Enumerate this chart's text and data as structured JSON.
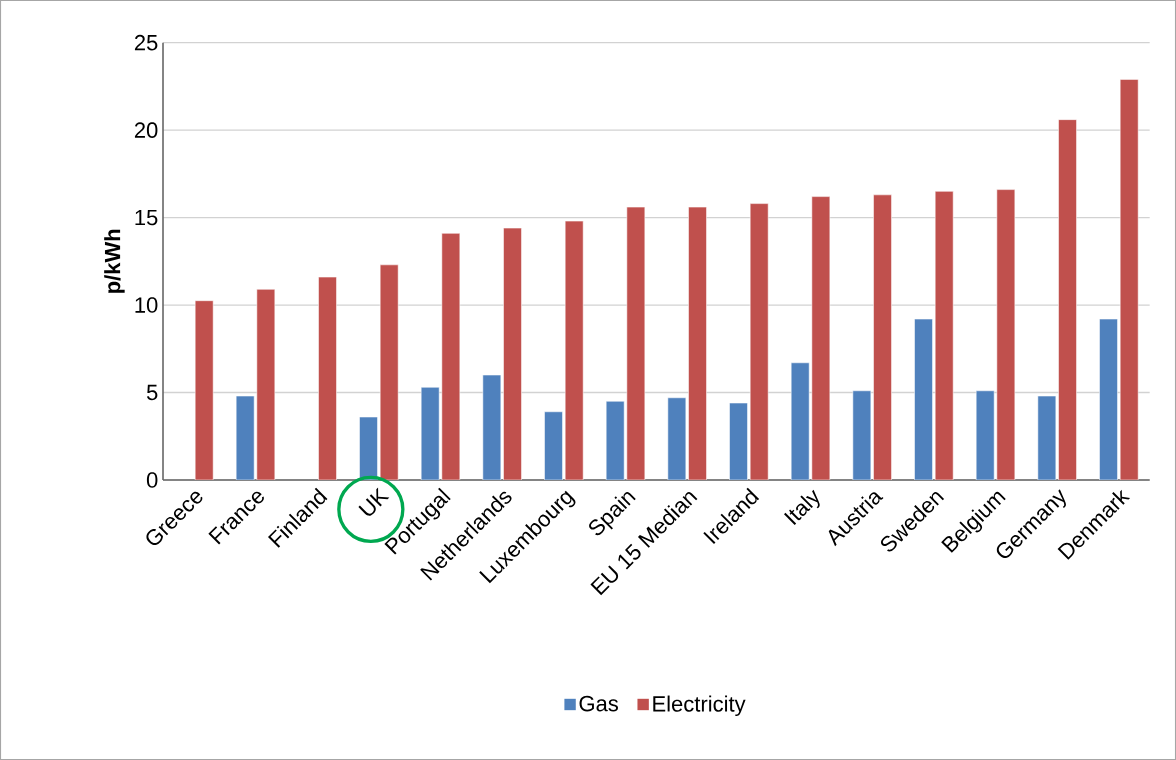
{
  "chart_data": {
    "type": "bar",
    "ylabel": "p/kWh",
    "categories": [
      "Greece",
      "France",
      "Finland",
      "UK",
      "Portugal",
      "Netherlands",
      "Luxembourg",
      "Spain",
      "EU 15 Median",
      "Ireland",
      "Italy",
      "Austria",
      "Sweden",
      "Belgium",
      "Germany",
      "Denmark"
    ],
    "series": [
      {
        "name": "Gas",
        "color": "#4f81bd",
        "values": [
          null,
          4.8,
          null,
          3.6,
          5.3,
          6.0,
          3.9,
          4.5,
          4.7,
          4.4,
          6.7,
          5.1,
          9.2,
          5.1,
          4.8,
          9.2
        ]
      },
      {
        "name": "Electricity",
        "color": "#c0504d",
        "values": [
          10.25,
          10.9,
          11.6,
          12.3,
          14.1,
          14.4,
          14.8,
          15.6,
          15.6,
          15.8,
          16.2,
          16.3,
          16.5,
          16.6,
          20.6,
          22.9
        ]
      }
    ],
    "ylim": [
      0,
      25
    ],
    "yticks": [
      0,
      5,
      10,
      15,
      20,
      25
    ],
    "grid": "y",
    "legend": "bottom"
  }
}
